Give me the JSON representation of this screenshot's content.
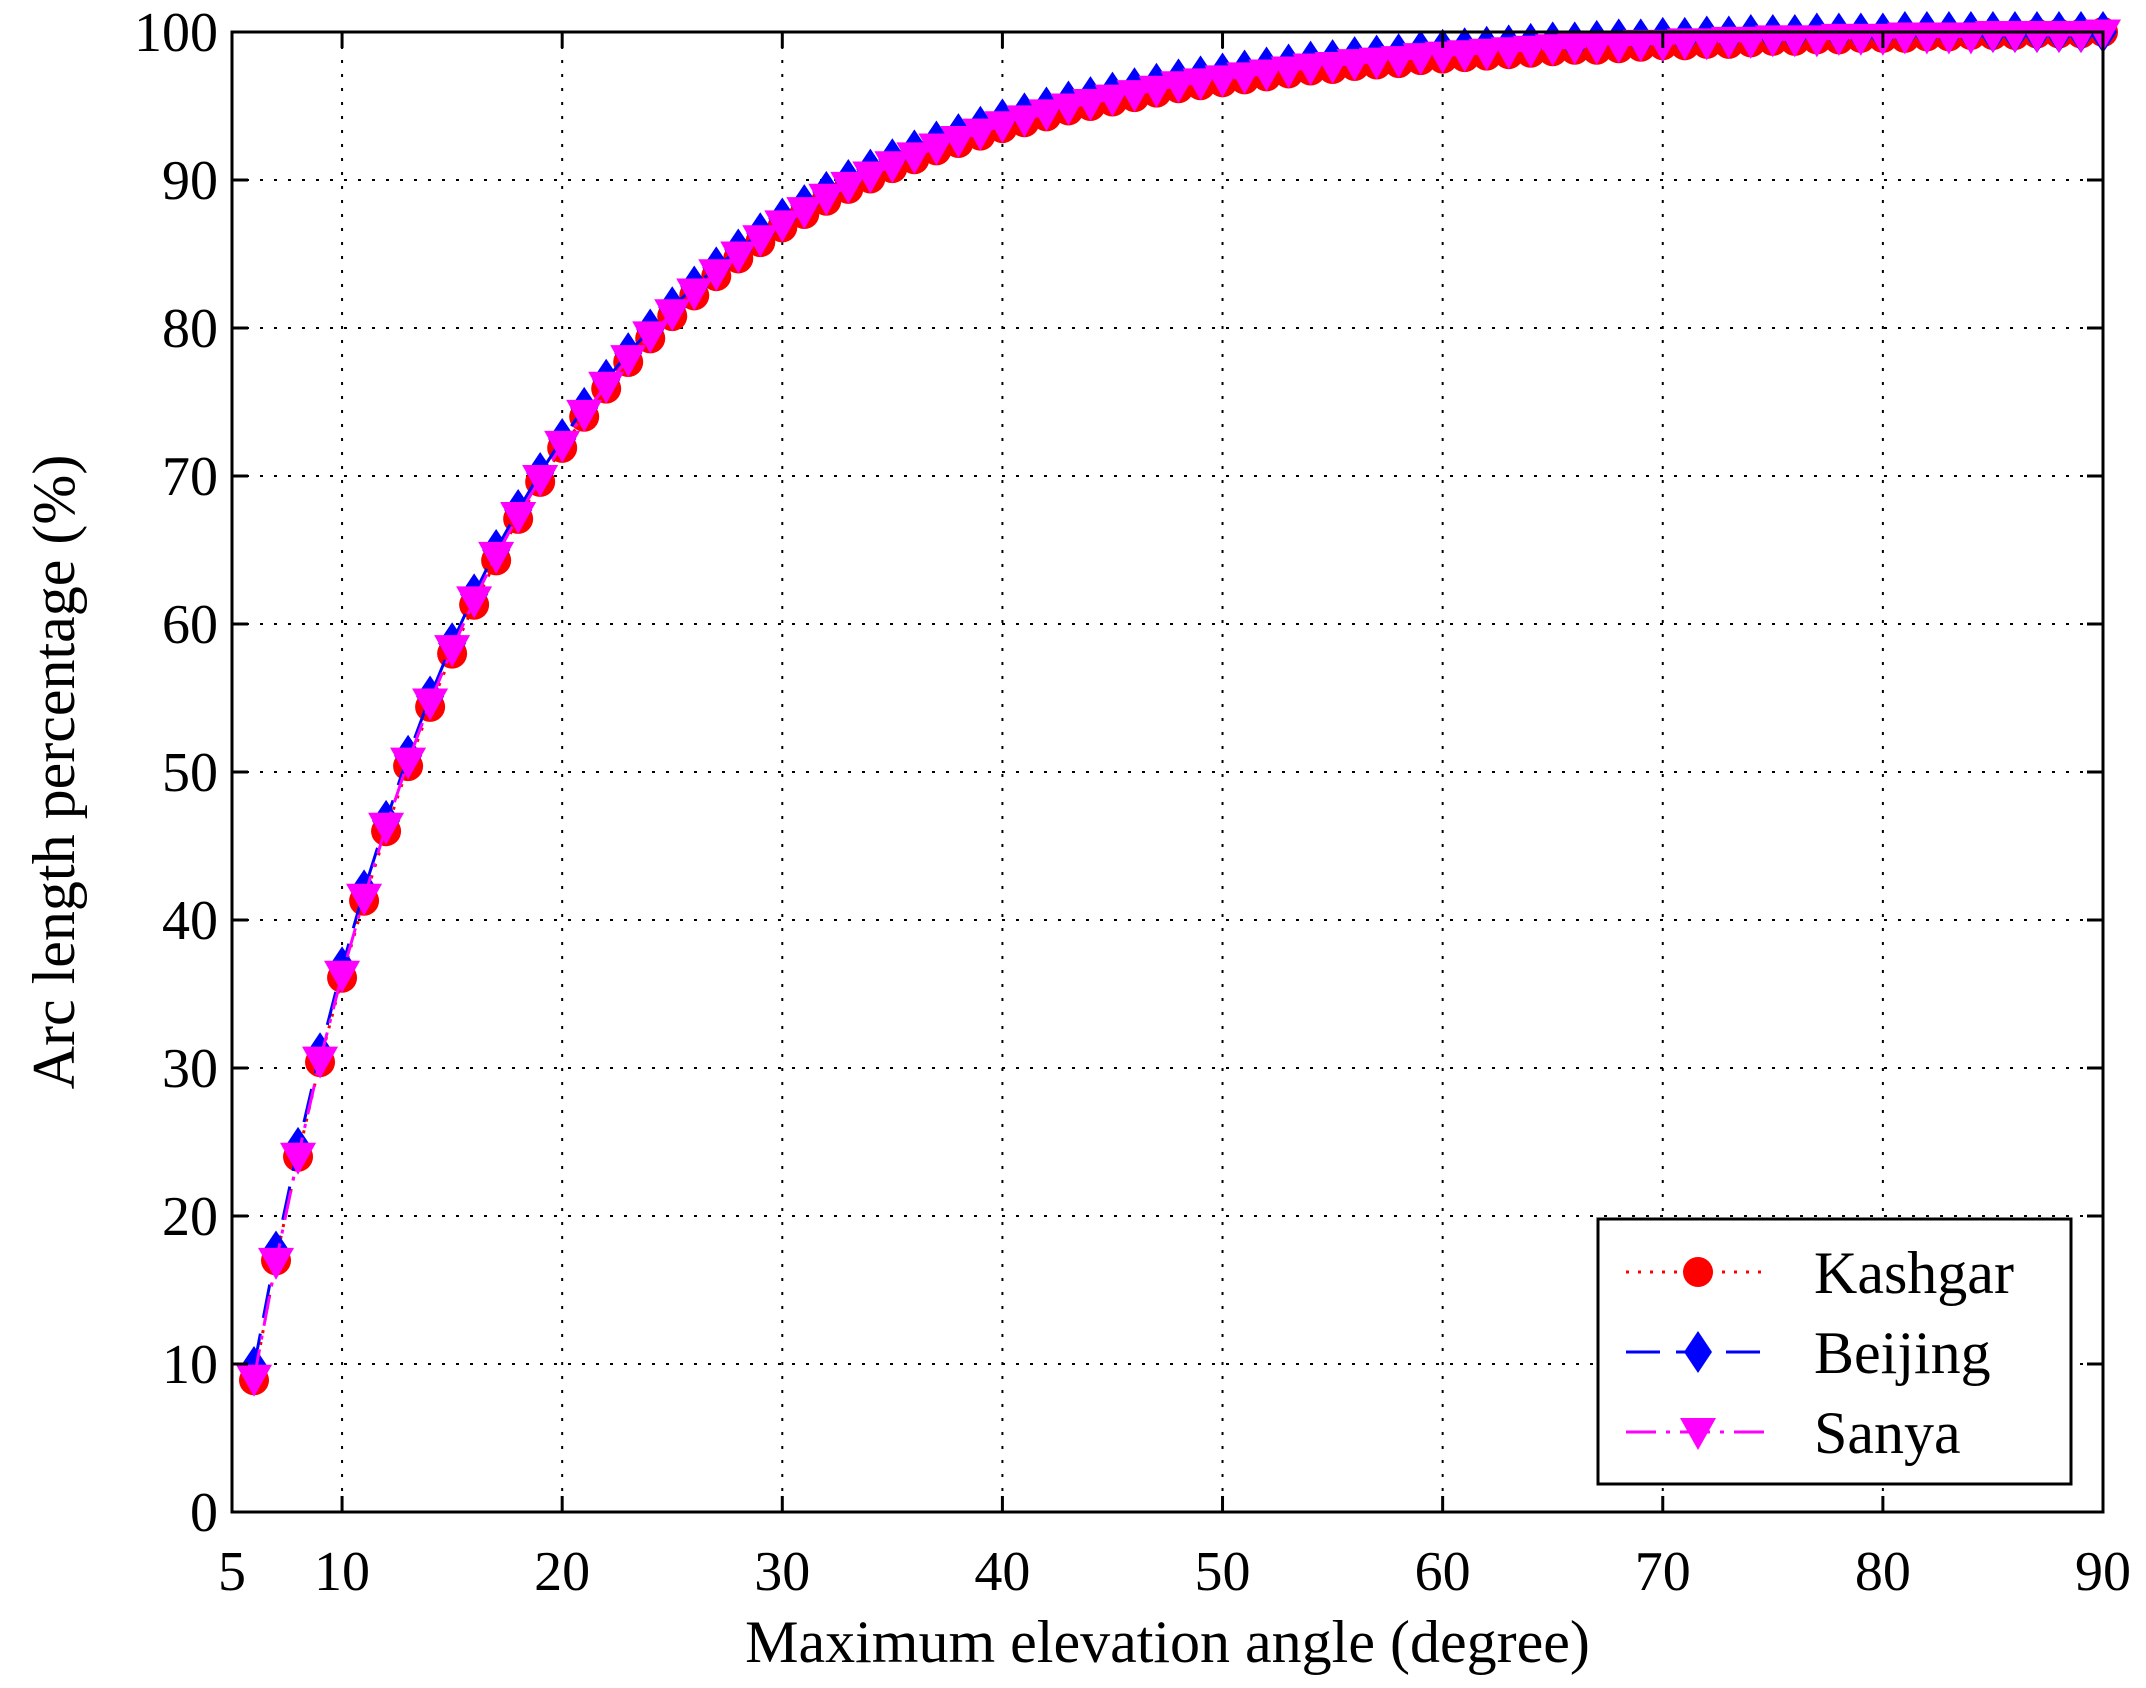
{
  "chart_data": {
    "type": "line",
    "title": "",
    "xlabel": "Maximum elevation angle (degree)",
    "ylabel": "Arc length percentage (%)",
    "xlim": [
      5,
      90
    ],
    "ylim": [
      0,
      100
    ],
    "xticks": [
      5,
      10,
      20,
      30,
      40,
      50,
      60,
      70,
      80,
      90
    ],
    "yticks": [
      0,
      10,
      20,
      30,
      40,
      50,
      60,
      70,
      80,
      90,
      100
    ],
    "grid": true,
    "legend_position": "bottom-right",
    "x_start": 6,
    "x_end": 90,
    "series": [
      {
        "name": "Kashgar",
        "color": "#ff0000",
        "line_style": "dotted",
        "marker": "circle",
        "values": [
          8.9,
          17.0,
          24.0,
          30.4,
          36.1,
          41.3,
          46.0,
          50.4,
          54.4,
          58.0,
          61.3,
          64.3,
          67.1,
          69.6,
          71.9,
          74.0,
          75.9,
          77.7,
          79.3,
          80.8,
          82.2,
          83.5,
          84.7,
          85.8,
          86.8,
          87.7,
          88.6,
          89.4,
          90.1,
          90.8,
          91.4,
          92.0,
          92.5,
          93.0,
          93.5,
          93.9,
          94.3,
          94.7,
          95.0,
          95.3,
          95.6,
          95.9,
          96.2,
          96.4,
          96.6,
          96.8,
          97.0,
          97.2,
          97.4,
          97.5,
          97.7,
          97.8,
          97.9,
          98.1,
          98.2,
          98.3,
          98.4,
          98.5,
          98.6,
          98.7,
          98.8,
          98.8,
          98.9,
          99.0,
          99.1,
          99.1,
          99.2,
          99.2,
          99.3,
          99.4,
          99.4,
          99.5,
          99.5,
          99.6,
          99.6,
          99.6,
          99.7,
          99.7,
          99.8,
          99.8,
          99.8,
          99.9,
          99.9,
          99.9,
          100.0
        ]
      },
      {
        "name": "Beijing",
        "color": "#0000ff",
        "line_style": "dashed",
        "marker": "diamond",
        "values": [
          9.8,
          17.6,
          24.6,
          31.0,
          36.8,
          42.0,
          46.7,
          51.1,
          55.1,
          58.7,
          62.0,
          65.0,
          67.7,
          70.2,
          72.5,
          74.6,
          76.5,
          78.3,
          79.9,
          81.4,
          82.8,
          84.1,
          85.3,
          86.4,
          87.4,
          88.3,
          89.2,
          90.0,
          90.7,
          91.4,
          92.0,
          92.6,
          93.1,
          93.6,
          94.1,
          94.5,
          94.9,
          95.3,
          95.6,
          95.9,
          96.2,
          96.5,
          96.8,
          97.0,
          97.2,
          97.4,
          97.6,
          97.8,
          98.0,
          98.1,
          98.3,
          98.4,
          98.5,
          98.7,
          98.8,
          98.9,
          99.0,
          99.1,
          99.2,
          99.3,
          99.3,
          99.4,
          99.5,
          99.5,
          99.6,
          99.6,
          99.7,
          99.7,
          99.8,
          99.8,
          99.8,
          99.9,
          99.9,
          99.9,
          99.9,
          100.0,
          100.0,
          100.0,
          100.0,
          100.0,
          100.0,
          100.0,
          100.0,
          100.0,
          100.0
        ]
      },
      {
        "name": "Sanya",
        "color": "#ff00ff",
        "line_style": "dash-dot",
        "marker": "triangle-down",
        "values": [
          9.0,
          16.9,
          24.0,
          30.5,
          36.3,
          41.5,
          46.3,
          50.7,
          54.7,
          58.3,
          61.6,
          64.6,
          67.3,
          69.8,
          72.1,
          74.2,
          76.1,
          77.9,
          79.5,
          81.0,
          82.4,
          83.7,
          84.9,
          86.0,
          87.0,
          87.9,
          88.8,
          89.6,
          90.3,
          91.0,
          91.6,
          92.2,
          92.7,
          93.2,
          93.7,
          94.1,
          94.5,
          94.9,
          95.2,
          95.5,
          95.8,
          96.1,
          96.4,
          96.6,
          96.8,
          97.0,
          97.2,
          97.4,
          97.6,
          97.7,
          97.9,
          98.0,
          98.1,
          98.3,
          98.4,
          98.5,
          98.6,
          98.7,
          98.8,
          98.9,
          99.0,
          99.0,
          99.1,
          99.2,
          99.2,
          99.3,
          99.3,
          99.4,
          99.4,
          99.5,
          99.5,
          99.5,
          99.6,
          99.6,
          99.6,
          99.7,
          99.7,
          99.7,
          99.7,
          99.8,
          99.8,
          99.8,
          99.8,
          99.8,
          99.9
        ]
      }
    ]
  }
}
